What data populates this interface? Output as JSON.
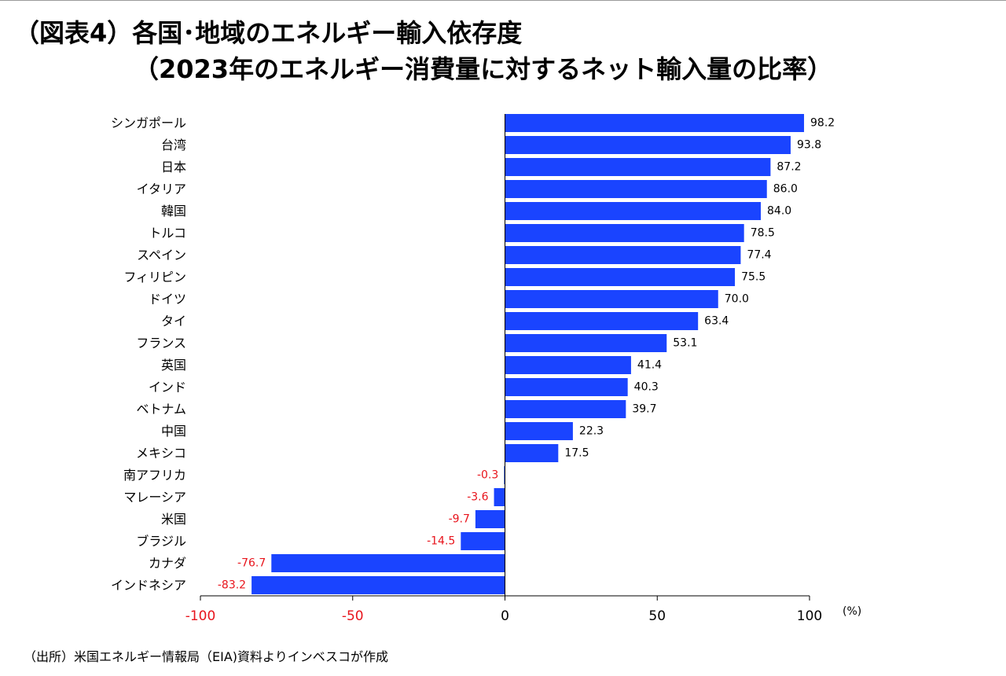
{
  "header": {
    "title_line1": "（図表4）各国･地域のエネルギー輸入依存度",
    "title_line2": "（2023年のエネルギー消費量に対するネット輸入量の比率）"
  },
  "chart_data": {
    "type": "bar",
    "orientation": "horizontal",
    "categories": [
      "シンガポール",
      "台湾",
      "日本",
      "イタリア",
      "韓国",
      "トルコ",
      "スペイン",
      "フィリピン",
      "ドイツ",
      "タイ",
      "フランス",
      "英国",
      "インド",
      "ベトナム",
      "中国",
      "メキシコ",
      "南アフリカ",
      "マレーシア",
      "米国",
      "ブラジル",
      "カナダ",
      "インドネシア"
    ],
    "values": [
      98.2,
      93.8,
      87.2,
      86.0,
      84.0,
      78.5,
      77.4,
      75.5,
      70.0,
      63.4,
      53.1,
      41.4,
      40.3,
      39.7,
      22.3,
      17.5,
      -0.3,
      -3.6,
      -9.7,
      -14.5,
      -76.7,
      -83.2
    ],
    "value_labels": [
      "98.2",
      "93.8",
      "87.2",
      "86.0",
      "84.0",
      "78.5",
      "77.4",
      "75.5",
      "70.0",
      "63.4",
      "53.1",
      "41.4",
      "40.3",
      "39.7",
      "22.3",
      "17.5",
      "-0.3",
      "-3.6",
      "-9.7",
      "-14.5",
      "-76.7",
      "-83.2"
    ],
    "xlim": [
      -100,
      100
    ],
    "x_ticks": [
      -100,
      -50,
      0,
      50,
      100
    ],
    "x_tick_labels": [
      "-100",
      "-50",
      "0",
      "50",
      "100"
    ],
    "unit_label": "(%)",
    "grid": false,
    "colors": {
      "bar": "#1a44ff",
      "negative_label": "#e8141c",
      "positive_label": "#000000",
      "axis": "#000000"
    }
  },
  "footer": {
    "source": "（出所）米国エネルギー情報局（EIA)資料よりインベスコが作成"
  }
}
